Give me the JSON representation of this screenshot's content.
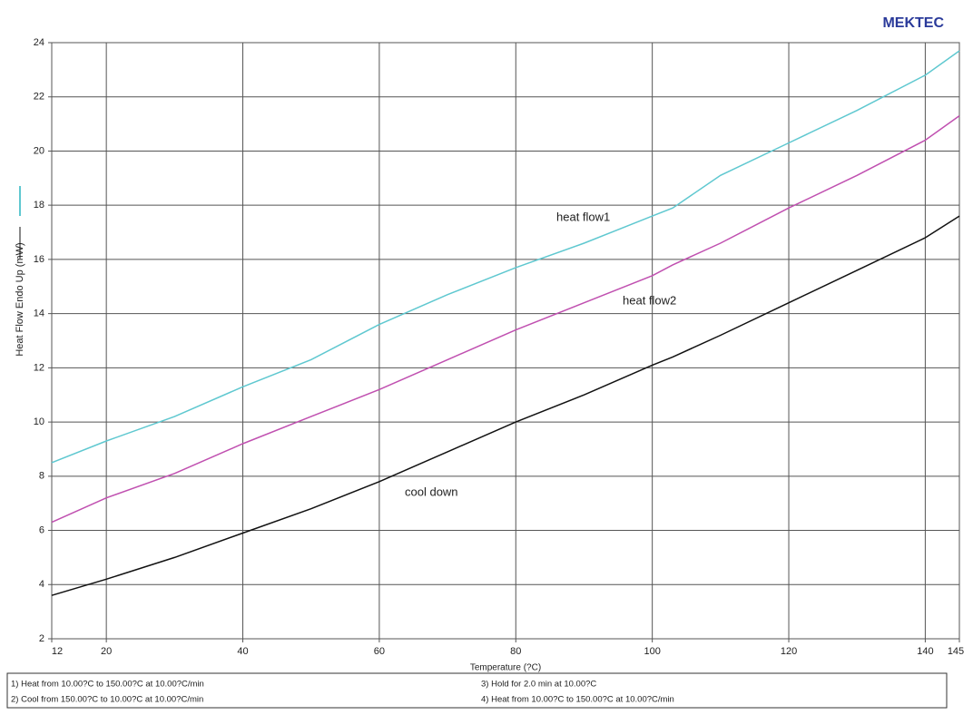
{
  "chart_data": {
    "type": "line",
    "brand": "MEKTEC",
    "x_label": "Temperature (?C)",
    "y_label": "Heat Flow Endo Up (mW)",
    "xlim": [
      12,
      145
    ],
    "xticks": [
      12,
      20,
      40,
      60,
      80,
      100,
      120,
      140,
      145
    ],
    "ylim": [
      2,
      24
    ],
    "yticks": [
      2,
      4,
      6,
      8,
      10,
      12,
      14,
      16,
      18,
      20,
      22,
      24
    ],
    "grid": true,
    "x": [
      12,
      20,
      30,
      40,
      50,
      60,
      70,
      80,
      90,
      100,
      103,
      110,
      120,
      130,
      140,
      145
    ],
    "series": [
      {
        "name": "heat flow1",
        "color": "#5fc8d0",
        "values": [
          8.5,
          9.3,
          10.2,
          11.3,
          12.3,
          13.6,
          14.7,
          15.7,
          16.6,
          17.6,
          17.9,
          19.1,
          20.3,
          21.5,
          22.8,
          23.7
        ]
      },
      {
        "name": "heat flow2",
        "color": "#c050b0",
        "values": [
          6.3,
          7.2,
          8.1,
          9.2,
          10.2,
          11.2,
          12.3,
          13.4,
          14.4,
          15.4,
          15.8,
          16.6,
          17.9,
          19.1,
          20.4,
          21.3
        ]
      },
      {
        "name": "cool down",
        "color": "#111111",
        "values": [
          3.6,
          4.2,
          5.0,
          5.9,
          6.8,
          7.8,
          8.9,
          10.0,
          11.0,
          12.1,
          12.4,
          13.2,
          14.4,
          15.6,
          16.8,
          17.6
        ]
      }
    ],
    "method_steps": [
      "1) Heat from 10.00?C to 150.00?C at 10.00?C/min",
      "2) Cool from 150.00?C to 10.00?C at 10.00?C/min",
      "3) Hold for 2.0 min at 10.00?C",
      "4) Heat from 10.00?C to 150.00?C at 10.00?C/min"
    ]
  }
}
